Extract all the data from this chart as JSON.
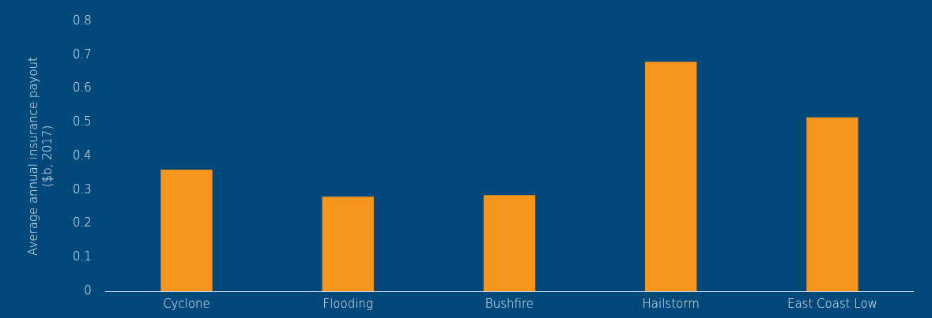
{
  "chart_data": {
    "type": "bar",
    "ylabel": "Average annual insurance payout\n($b, 2017)",
    "categories": [
      "Cyclone",
      "Flooding",
      "Bushfire",
      "Hailstorm",
      "East Coast Low"
    ],
    "values": [
      0.36,
      0.28,
      0.285,
      0.68,
      0.515
    ],
    "color": "#f7941d",
    "ylim": [
      0,
      0.8
    ],
    "yticks": [
      0,
      0.1,
      0.2,
      0.3,
      0.4,
      0.5,
      0.6,
      0.7,
      0.8
    ],
    "grid": false,
    "legend": false
  }
}
